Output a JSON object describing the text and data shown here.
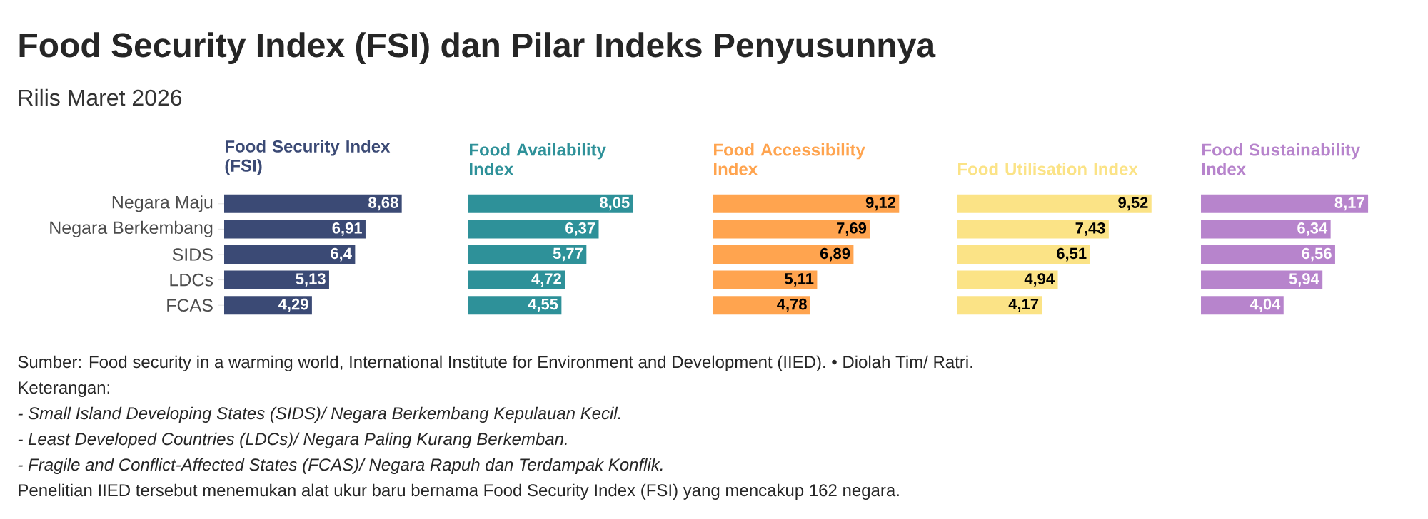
{
  "chart_data": [
    {
      "type": "bar",
      "orientation": "horizontal",
      "title": "Food Security Index (FSI) dan Pilar Indeks Penyusunnya",
      "subtitle": "Rilis Maret 2026",
      "tick_labels": "y",
      "categories": [
        "Negara Maju",
        "Negara Berkembang",
        "SIDS",
        "LDCs",
        "FCAS"
      ],
      "series": [
        {
          "name": "Food Security Index (FSI)",
          "color": "#3b4a75",
          "values": [
            8.68,
            6.91,
            6.4,
            5.13,
            4.29
          ],
          "value_labels": [
            "8,68",
            "6,91",
            "6,4",
            "5,13",
            "4,29"
          ]
        }
      ],
      "annotations": [
        "Sumber: Food security in a warming world, International Institute for Environment and Development (IIED). • Diolah Tim/ Ratri.",
        "Keterangan:",
        "*- Small Island Developing States (SIDS)/ Negara Berkembang Kepulauan Kecil.*",
        "*- Least Developed Countries (LDCs)/ Negara Paling Kurang Berkemban.*",
        "*- Fragile and Conflict-Affected States (FCAS)/ Negara Rapuh dan Terdampak Konflik.*",
        "Penelitian IIED tersebut menemukan alat ukur baru bernama Food Security Index (FSI) yang mencakup 162 negara."
      ]
    },
    {
      "type": "bar",
      "orientation": "horizontal",
      "series": [
        {
          "name": "Food Availability Index",
          "color": "#2e9199",
          "values": [
            8.05,
            6.37,
            5.77,
            4.72,
            4.55
          ],
          "value_labels": [
            "8,05",
            "6,37",
            "5,77",
            "4,72",
            "4,55"
          ]
        }
      ]
    },
    {
      "type": "bar",
      "orientation": "horizontal",
      "series": [
        {
          "name": "Food Accessibility Index",
          "color": "#ffa44f",
          "values": [
            9.12,
            7.69,
            6.89,
            5.11,
            4.78
          ],
          "value_labels": [
            "9,12",
            "7,69",
            "6,89",
            "5,11",
            "4,78"
          ]
        }
      ]
    },
    {
      "type": "bar",
      "orientation": "horizontal",
      "series": [
        {
          "name": "Food Utilisation Index",
          "color": "#fbe386",
          "values": [
            9.52,
            7.43,
            6.51,
            4.94,
            4.17
          ],
          "value_labels": [
            "9,52",
            "7,43",
            "6,51",
            "4,94",
            "4,17"
          ]
        }
      ]
    },
    {
      "type": "bar",
      "orientation": "horizontal",
      "series": [
        {
          "name": "Food Sustainability Index",
          "color": "#b784cc",
          "values": [
            8.17,
            6.34,
            6.56,
            5.94,
            4.04
          ],
          "value_labels": [
            "8,17",
            "6,34",
            "6,56",
            "5,94",
            "4,04"
          ]
        }
      ]
    }
  ]
}
